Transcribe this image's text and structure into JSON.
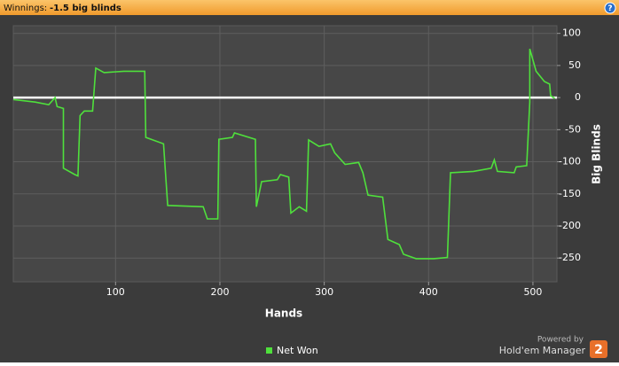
{
  "header": {
    "label": "Winnings:",
    "value": "-1.5 big blinds",
    "help": "?"
  },
  "branding": {
    "powered_by": "Powered by",
    "product": "Hold'em Manager",
    "badge": "2"
  },
  "chart_data": {
    "type": "line",
    "x_label": "Hands",
    "y_label": "Big Blinds",
    "x": [
      2,
      23,
      36,
      42,
      44,
      50,
      50,
      61,
      64,
      66,
      70,
      78,
      81,
      89,
      108,
      128,
      129,
      146,
      150,
      184,
      188,
      198,
      199,
      212,
      214,
      234,
      235,
      240,
      255,
      258,
      266,
      268,
      276,
      283,
      285,
      295,
      306,
      310,
      320,
      333,
      337,
      342,
      356,
      361,
      372,
      376,
      388,
      405,
      418,
      421,
      443,
      460,
      463,
      466,
      482,
      484,
      494,
      497,
      497,
      503,
      511,
      516,
      517,
      521
    ],
    "series": [
      {
        "name": "Net Won",
        "color": "#4fe03c",
        "values": [
          -3,
          -7,
          -11,
          0,
          -14,
          -17,
          -110,
          -120,
          -122,
          -28,
          -21,
          -21,
          46,
          39,
          41,
          41,
          -62,
          -72,
          -168,
          -170,
          -189,
          -189,
          -65,
          -62,
          -55,
          -65,
          -170,
          -131,
          -128,
          -120,
          -124,
          -180,
          -170,
          -177,
          -66,
          -76,
          -72,
          -86,
          -104,
          -101,
          -117,
          -152,
          -155,
          -221,
          -229,
          -244,
          -251,
          -251,
          -249,
          -117,
          -115,
          -110,
          -97,
          -115,
          -117,
          -108,
          -106,
          -7,
          76,
          41,
          25,
          21,
          3,
          -1.5
        ]
      }
    ],
    "xlim": [
      2,
      523
    ],
    "ylim": [
      -287,
      112
    ],
    "xticks": [
      100,
      200,
      300,
      400,
      500
    ],
    "yticks": [
      100,
      50,
      0,
      -50,
      -100,
      -150,
      -200,
      -250
    ],
    "reference_line": 0,
    "grid": true,
    "legend": "bottom"
  }
}
